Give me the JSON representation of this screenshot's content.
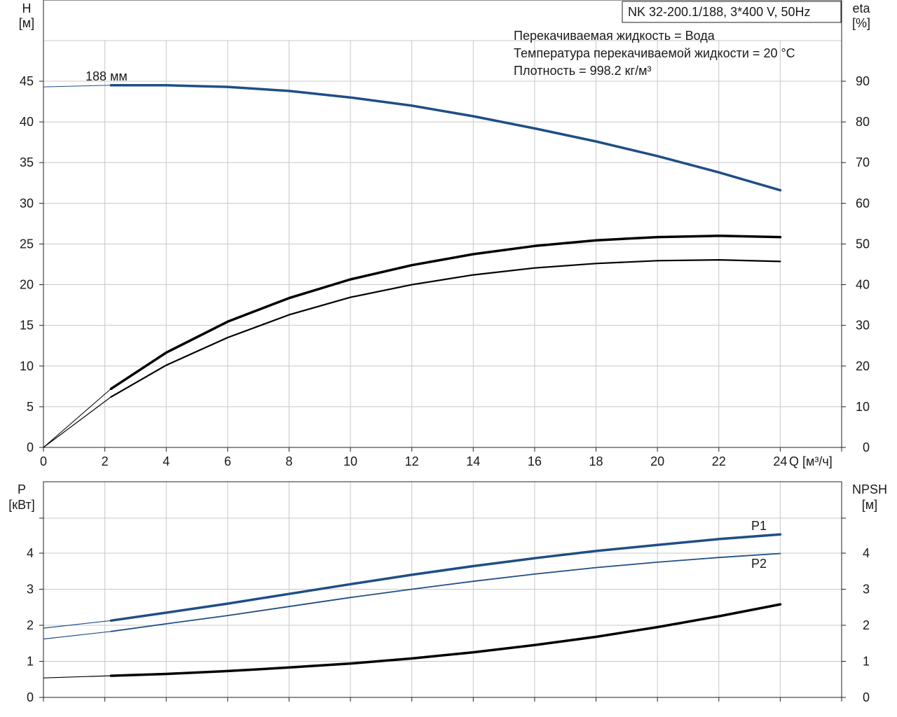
{
  "title": "NK 32-200.1/188, 3*400 V, 50Hz",
  "info_lines": [
    "Перекачиваемая жидкость = Вода",
    "Температура перекачиваемой жидкости = 20 °C",
    "Плотность = 998.2 кг/м³"
  ],
  "colors": {
    "blue": "#1f4e86",
    "black": "#000000",
    "grid": "#c8c8c8"
  },
  "chart_data": [
    {
      "type": "line",
      "title": "NK 32-200.1/188, 3*400 V, 50Hz",
      "xlabel": "Q [м³/ч]",
      "x_ticks": [
        "0",
        "2",
        "4",
        "6",
        "8",
        "10",
        "12",
        "14",
        "16",
        "18",
        "20",
        "22",
        "24"
      ],
      "xlim": [
        0,
        26
      ],
      "ylabel_left_line1": "H",
      "ylabel_left_line2": "[м]",
      "ylim_left": [
        0,
        45
      ],
      "ylabel_right_line1": "eta",
      "ylabel_right_line2": "[%]",
      "ylim_right": [
        0,
        90
      ],
      "left_ticks": [
        "0",
        "5",
        "10",
        "15",
        "20",
        "25",
        "30",
        "35",
        "40",
        "45"
      ],
      "right_ticks": [
        "0",
        "10",
        "20",
        "30",
        "40",
        "50",
        "60",
        "70",
        "80",
        "90"
      ],
      "grid": true,
      "series": [
        {
          "name": "188 мм",
          "axis": "left",
          "color": "#1f4e86",
          "points": [
            [
              0,
              44.3
            ],
            [
              2.2,
              44.5
            ],
            [
              4,
              44.5
            ],
            [
              6,
              44.3
            ],
            [
              8,
              43.8
            ],
            [
              10,
              43.0
            ],
            [
              12,
              42.0
            ],
            [
              14,
              40.7
            ],
            [
              16,
              39.2
            ],
            [
              18,
              37.6
            ],
            [
              20,
              35.8
            ],
            [
              22,
              33.8
            ],
            [
              24,
              31.6
            ]
          ]
        },
        {
          "name": "",
          "axis": "right",
          "color": "#000000",
          "points": [
            [
              0,
              0
            ],
            [
              2.2,
              14.4
            ],
            [
              4,
              23.3
            ],
            [
              6,
              30.9
            ],
            [
              8,
              36.7
            ],
            [
              10,
              41.3
            ],
            [
              12,
              44.8
            ],
            [
              14,
              47.5
            ],
            [
              16,
              49.5
            ],
            [
              18,
              50.9
            ],
            [
              20,
              51.7
            ],
            [
              22,
              52.0
            ],
            [
              24,
              51.7
            ]
          ]
        },
        {
          "name": "",
          "axis": "right",
          "color": "#000000",
          "points": [
            [
              0,
              0
            ],
            [
              2.2,
              12.4
            ],
            [
              4,
              20.2
            ],
            [
              6,
              27.0
            ],
            [
              8,
              32.6
            ],
            [
              10,
              36.9
            ],
            [
              12,
              40.0
            ],
            [
              14,
              42.4
            ],
            [
              16,
              44.1
            ],
            [
              18,
              45.2
            ],
            [
              20,
              45.9
            ],
            [
              22,
              46.1
            ],
            [
              24,
              45.7
            ]
          ]
        }
      ]
    },
    {
      "type": "line",
      "xlim": [
        0,
        26
      ],
      "ylabel_left_line1": "P",
      "ylabel_left_line2": "[кВт]",
      "ylim_left": [
        0,
        5
      ],
      "ylabel_right_line1": "NPSH",
      "ylabel_right_line2": "[м]",
      "ylim_right": [
        0,
        5
      ],
      "left_ticks": [
        "0",
        "1",
        "2",
        "3",
        "4"
      ],
      "right_ticks": [
        "0",
        "1",
        "2",
        "3",
        "4"
      ],
      "grid": true,
      "series": [
        {
          "name": "P1",
          "axis": "left",
          "color": "#1f4e86",
          "points": [
            [
              0,
              1.92
            ],
            [
              2.2,
              2.13
            ],
            [
              4,
              2.35
            ],
            [
              6,
              2.6
            ],
            [
              8,
              2.87
            ],
            [
              10,
              3.14
            ],
            [
              12,
              3.4
            ],
            [
              14,
              3.64
            ],
            [
              16,
              3.86
            ],
            [
              18,
              4.06
            ],
            [
              20,
              4.23
            ],
            [
              22,
              4.39
            ],
            [
              24,
              4.52
            ]
          ]
        },
        {
          "name": "P2",
          "axis": "left",
          "color": "#1f4e86",
          "points": [
            [
              0,
              1.62
            ],
            [
              2.2,
              1.83
            ],
            [
              4,
              2.04
            ],
            [
              6,
              2.27
            ],
            [
              8,
              2.52
            ],
            [
              10,
              2.77
            ],
            [
              12,
              3.0
            ],
            [
              14,
              3.22
            ],
            [
              16,
              3.42
            ],
            [
              18,
              3.6
            ],
            [
              20,
              3.75
            ],
            [
              22,
              3.88
            ],
            [
              24,
              3.99
            ]
          ]
        },
        {
          "name": "",
          "axis": "right",
          "color": "#000000",
          "points": [
            [
              0,
              0.54
            ],
            [
              2.2,
              0.6
            ],
            [
              4,
              0.65
            ],
            [
              6,
              0.73
            ],
            [
              8,
              0.83
            ],
            [
              10,
              0.94
            ],
            [
              12,
              1.08
            ],
            [
              14,
              1.25
            ],
            [
              16,
              1.45
            ],
            [
              18,
              1.68
            ],
            [
              20,
              1.95
            ],
            [
              22,
              2.25
            ],
            [
              24,
              2.58
            ]
          ]
        }
      ]
    }
  ]
}
